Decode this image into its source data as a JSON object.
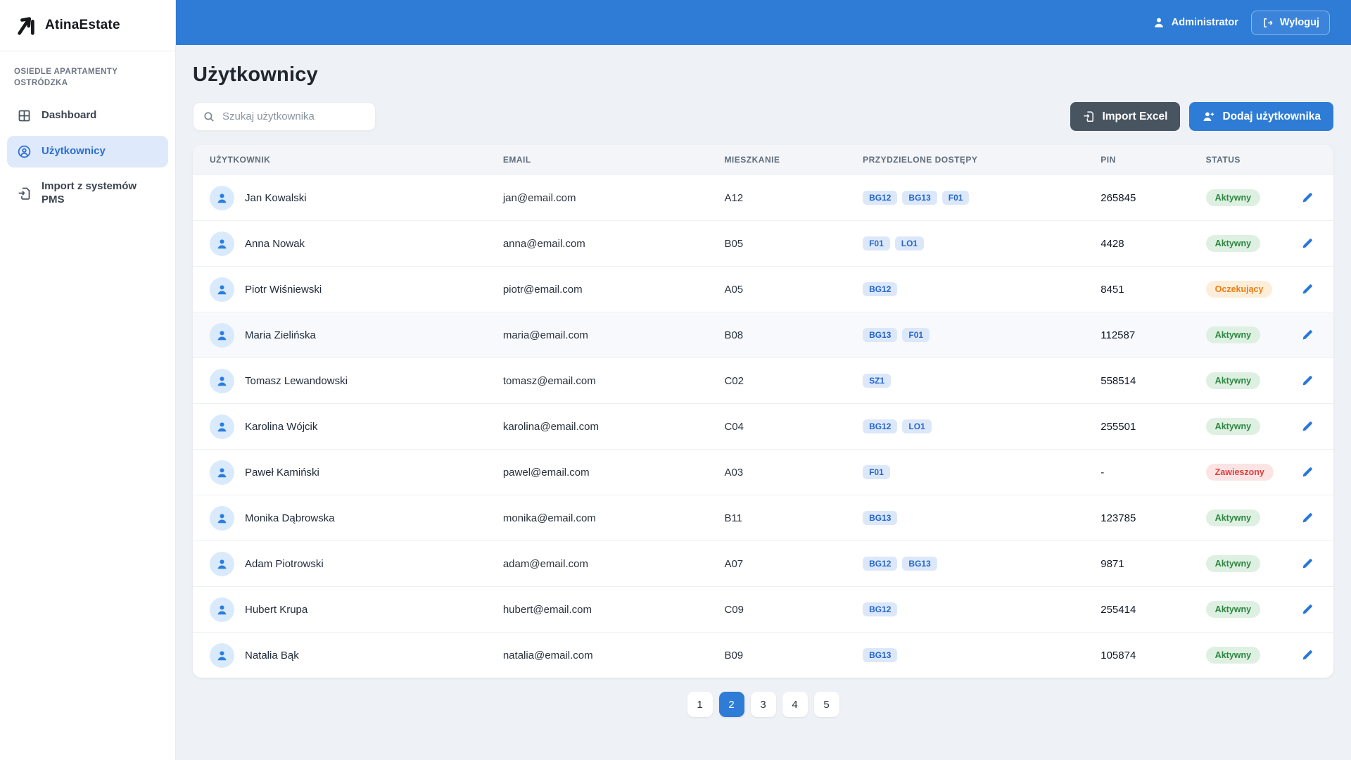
{
  "brand": {
    "name": "AtinaEstate"
  },
  "topbar": {
    "user_role": "Administrator",
    "logout_label": "Wyloguj"
  },
  "sidebar": {
    "section_label": "Osiedle Apartamenty Ostródzka",
    "items": [
      {
        "label": "Dashboard",
        "icon": "dashboard-grid-icon",
        "active": false
      },
      {
        "label": "Użytkownicy",
        "icon": "users-icon",
        "active": true
      },
      {
        "label": "Import z systemów PMS",
        "icon": "file-import-icon",
        "active": false
      }
    ]
  },
  "page": {
    "title": "Użytkownicy",
    "search_placeholder": "Szukaj użytkownika",
    "search_value": "",
    "import_button": "Import Excel",
    "add_button": "Dodaj użytkownika"
  },
  "table": {
    "headers": [
      "Użytkownik",
      "Email",
      "Mieszkanie",
      "Przydzielone dostępy",
      "PIN",
      "Status"
    ],
    "rows": [
      {
        "name": "Jan Kowalski",
        "email": "jan@email.com",
        "apartment": "A12",
        "access": [
          "BG12",
          "BG13",
          "F01"
        ],
        "pin": "265845",
        "status": "Aktywny",
        "status_type": "active",
        "highlighted": false
      },
      {
        "name": "Anna Nowak",
        "email": "anna@email.com",
        "apartment": "B05",
        "access": [
          "F01",
          "LO1"
        ],
        "pin": "4428",
        "status": "Aktywny",
        "status_type": "active",
        "highlighted": false
      },
      {
        "name": "Piotr Wiśniewski",
        "email": "piotr@email.com",
        "apartment": "A05",
        "access": [
          "BG12"
        ],
        "pin": "8451",
        "status": "Oczekujący",
        "status_type": "pending",
        "highlighted": false
      },
      {
        "name": "Maria Zielińska",
        "email": "maria@email.com",
        "apartment": "B08",
        "access": [
          "BG13",
          "F01"
        ],
        "pin": "112587",
        "status": "Aktywny",
        "status_type": "active",
        "highlighted": true
      },
      {
        "name": "Tomasz Lewandowski",
        "email": "tomasz@email.com",
        "apartment": "C02",
        "access": [
          "SZ1"
        ],
        "pin": "558514",
        "status": "Aktywny",
        "status_type": "active",
        "highlighted": false
      },
      {
        "name": "Karolina Wójcik",
        "email": "karolina@email.com",
        "apartment": "C04",
        "access": [
          "BG12",
          "LO1"
        ],
        "pin": "255501",
        "status": "Aktywny",
        "status_type": "active",
        "highlighted": false
      },
      {
        "name": "Paweł Kamiński",
        "email": "pawel@email.com",
        "apartment": "A03",
        "access": [
          "F01"
        ],
        "pin": "-",
        "status": "Zawieszony",
        "status_type": "suspended",
        "highlighted": false
      },
      {
        "name": "Monika Dąbrowska",
        "email": "monika@email.com",
        "apartment": "B11",
        "access": [
          "BG13"
        ],
        "pin": "123785",
        "status": "Aktywny",
        "status_type": "active",
        "highlighted": false
      },
      {
        "name": "Adam Piotrowski",
        "email": "adam@email.com",
        "apartment": "A07",
        "access": [
          "BG12",
          "BG13"
        ],
        "pin": "9871",
        "status": "Aktywny",
        "status_type": "active",
        "highlighted": false
      },
      {
        "name": "Hubert Krupa",
        "email": "hubert@email.com",
        "apartment": "C09",
        "access": [
          "BG12"
        ],
        "pin": "255414",
        "status": "Aktywny",
        "status_type": "active",
        "highlighted": false
      },
      {
        "name": "Natalia Bąk",
        "email": "natalia@email.com",
        "apartment": "B09",
        "access": [
          "BG13"
        ],
        "pin": "105874",
        "status": "Aktywny",
        "status_type": "active",
        "highlighted": false
      }
    ]
  },
  "pagination": {
    "pages": [
      "1",
      "2",
      "3",
      "4",
      "5"
    ],
    "active": "2"
  },
  "colors": {
    "topbar_blue": "#2e7cd6",
    "accent_blue": "#2a6fd2",
    "dark_button": "#48545f",
    "badge_bg": "#dce8fa",
    "badge_text": "#2566cb",
    "status_active_bg": "#def0e2",
    "status_active_text": "#2d8640",
    "status_pending_bg": "#fdeeda",
    "status_pending_text": "#ed7d15",
    "status_suspended_bg": "#fce4e4",
    "status_suspended_text": "#e03e3e",
    "page_bg": "#eef1f5"
  }
}
